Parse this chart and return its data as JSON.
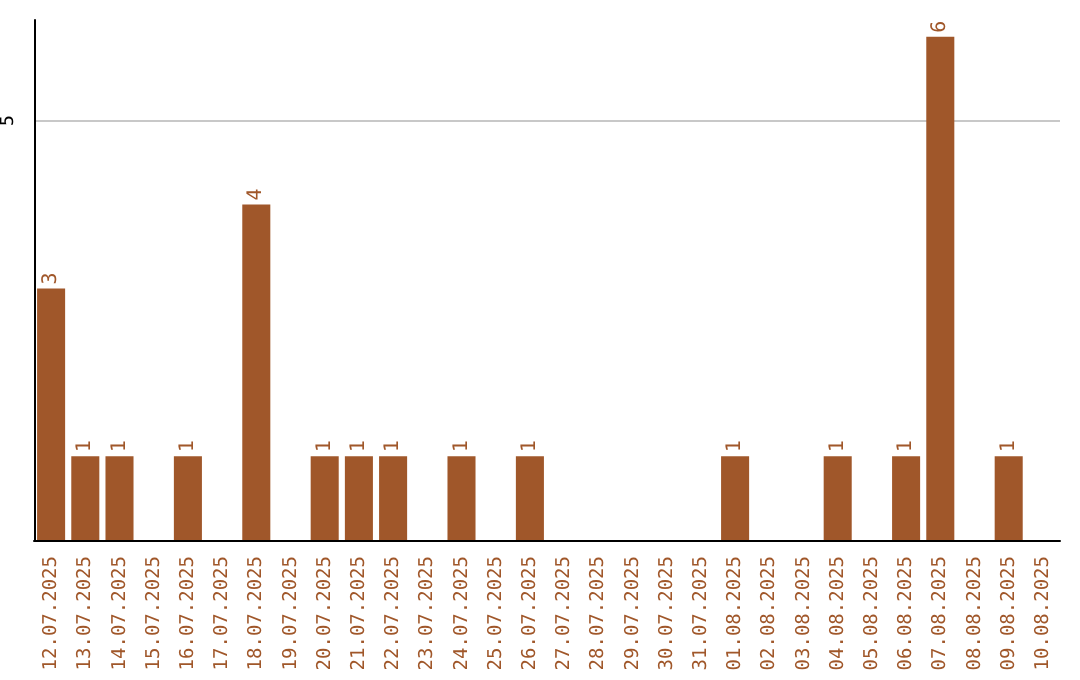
{
  "chart_data": {
    "type": "bar",
    "categories": [
      "12.07.2025",
      "13.07.2025",
      "14.07.2025",
      "15.07.2025",
      "16.07.2025",
      "17.07.2025",
      "18.07.2025",
      "19.07.2025",
      "20.07.2025",
      "21.07.2025",
      "22.07.2025",
      "23.07.2025",
      "24.07.2025",
      "25.07.2025",
      "26.07.2025",
      "27.07.2025",
      "28.07.2025",
      "29.07.2025",
      "30.07.2025",
      "31.07.2025",
      "01.08.2025",
      "02.08.2025",
      "03.08.2025",
      "04.08.2025",
      "05.08.2025",
      "06.08.2025",
      "07.08.2025",
      "08.08.2025",
      "09.08.2025",
      "10.08.2025"
    ],
    "values": [
      3,
      1,
      1,
      0,
      1,
      0,
      4,
      0,
      1,
      1,
      1,
      0,
      1,
      0,
      1,
      0,
      0,
      0,
      0,
      0,
      1,
      0,
      0,
      1,
      0,
      1,
      6,
      0,
      1,
      0
    ],
    "value_labels": [
      "3",
      "1",
      "1",
      null,
      "1",
      null,
      "4",
      null,
      "1",
      "1",
      "1",
      null,
      "1",
      null,
      "1",
      null,
      null,
      null,
      null,
      null,
      "1",
      null,
      null,
      "1",
      null,
      "1",
      "6",
      null,
      "1",
      null
    ],
    "color": "#a0572a",
    "ylim": [
      0,
      6.2
    ],
    "yticks": [
      5
    ],
    "grid": "y"
  }
}
